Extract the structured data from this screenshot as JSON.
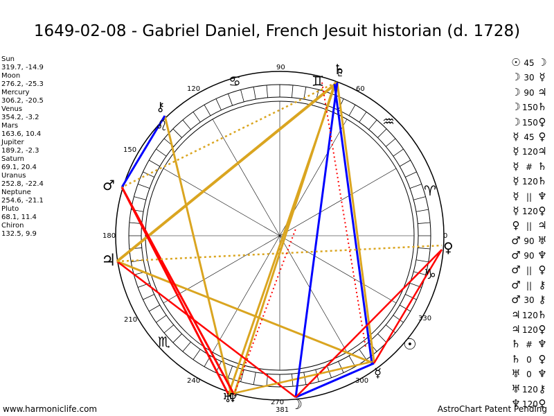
{
  "title": "1649-02-08 - Gabriel Daniel, French Jesuit historian (d. 1728)",
  "planets": [
    {
      "name": "Sun",
      "coords": "319.7, -14.9"
    },
    {
      "name": "Moon",
      "coords": "276.2, -25.3"
    },
    {
      "name": "Mercury",
      "coords": "306.2, -20.5"
    },
    {
      "name": "Venus",
      "coords": "354.2, -3.2"
    },
    {
      "name": "Mars",
      "coords": "163.6, 10.4"
    },
    {
      "name": "Jupiter",
      "coords": "189.2, -2.3"
    },
    {
      "name": "Saturn",
      "coords": "69.1, 20.4"
    },
    {
      "name": "Uranus",
      "coords": "252.8, -22.4"
    },
    {
      "name": "Neptune",
      "coords": "254.6, -21.1"
    },
    {
      "name": "Pluto",
      "coords": "68.1, 11.4"
    },
    {
      "name": "Chiron",
      "coords": "132.5, 9.9"
    }
  ],
  "degree_labels": [
    "90",
    "60",
    "120",
    "150",
    "180",
    "0",
    "210",
    "330",
    "240",
    "300",
    "270",
    "381"
  ],
  "aspects": [
    {
      "p1": "☉",
      "asp": "45",
      "p2": "☽"
    },
    {
      "p1": "☽",
      "asp": "30",
      "p2": "☿"
    },
    {
      "p1": "☽",
      "asp": "90",
      "p2": "♃"
    },
    {
      "p1": "☽",
      "asp": "150",
      "p2": "♄"
    },
    {
      "p1": "☽",
      "asp": "150",
      "p2": "♀"
    },
    {
      "p1": "☿",
      "asp": "45",
      "p2": "♀"
    },
    {
      "p1": "☿",
      "asp": "120",
      "p2": "♃"
    },
    {
      "p1": "☿",
      "asp": "#",
      "p2": "♄"
    },
    {
      "p1": "☿",
      "asp": "120",
      "p2": "♄"
    },
    {
      "p1": "☿",
      "asp": "||",
      "p2": "♆"
    },
    {
      "p1": "☿",
      "asp": "120",
      "p2": "♀"
    },
    {
      "p1": "♀",
      "asp": "||",
      "p2": "♃"
    },
    {
      "p1": "♂",
      "asp": "90",
      "p2": "♅"
    },
    {
      "p1": "♂",
      "asp": "90",
      "p2": "♆"
    },
    {
      "p1": "♂",
      "asp": "||",
      "p2": "♀"
    },
    {
      "p1": "♂",
      "asp": "||",
      "p2": "⚷"
    },
    {
      "p1": "♂",
      "asp": "30",
      "p2": "⚷"
    },
    {
      "p1": "♃",
      "asp": "120",
      "p2": "♄"
    },
    {
      "p1": "♃",
      "asp": "120",
      "p2": "♀"
    },
    {
      "p1": "♄",
      "asp": "#",
      "p2": "♆"
    },
    {
      "p1": "♄",
      "asp": "0",
      "p2": "♀"
    },
    {
      "p1": "♅",
      "asp": "0",
      "p2": "♆"
    },
    {
      "p1": "♅",
      "asp": "120",
      "p2": "⚷"
    },
    {
      "p1": "♆",
      "asp": "120",
      "p2": "♀"
    }
  ],
  "wheel_glyphs": {
    "sun": "☉",
    "moon": "☽",
    "mercury": "☿",
    "venus": "♀",
    "mars": "♂",
    "jupiter": "♃",
    "saturn": "♄",
    "uranus": "♅",
    "neptune": "♆",
    "pluto": "♇",
    "chiron": "⚷"
  },
  "zodiac_glyphs": {
    "gemini": "♊",
    "cancer": "♋",
    "leo": "♌",
    "virgo": "♍",
    "scorpio": "♏",
    "capricorn": "♑",
    "aquarius": "♒",
    "aries": "♈"
  },
  "colors": {
    "trine": "#DAA520",
    "square": "#FF0000",
    "conjunction": "#0000FF"
  },
  "footer_left": "www.harmoniclife.com",
  "footer_right": "AstroChart Patent Pending"
}
